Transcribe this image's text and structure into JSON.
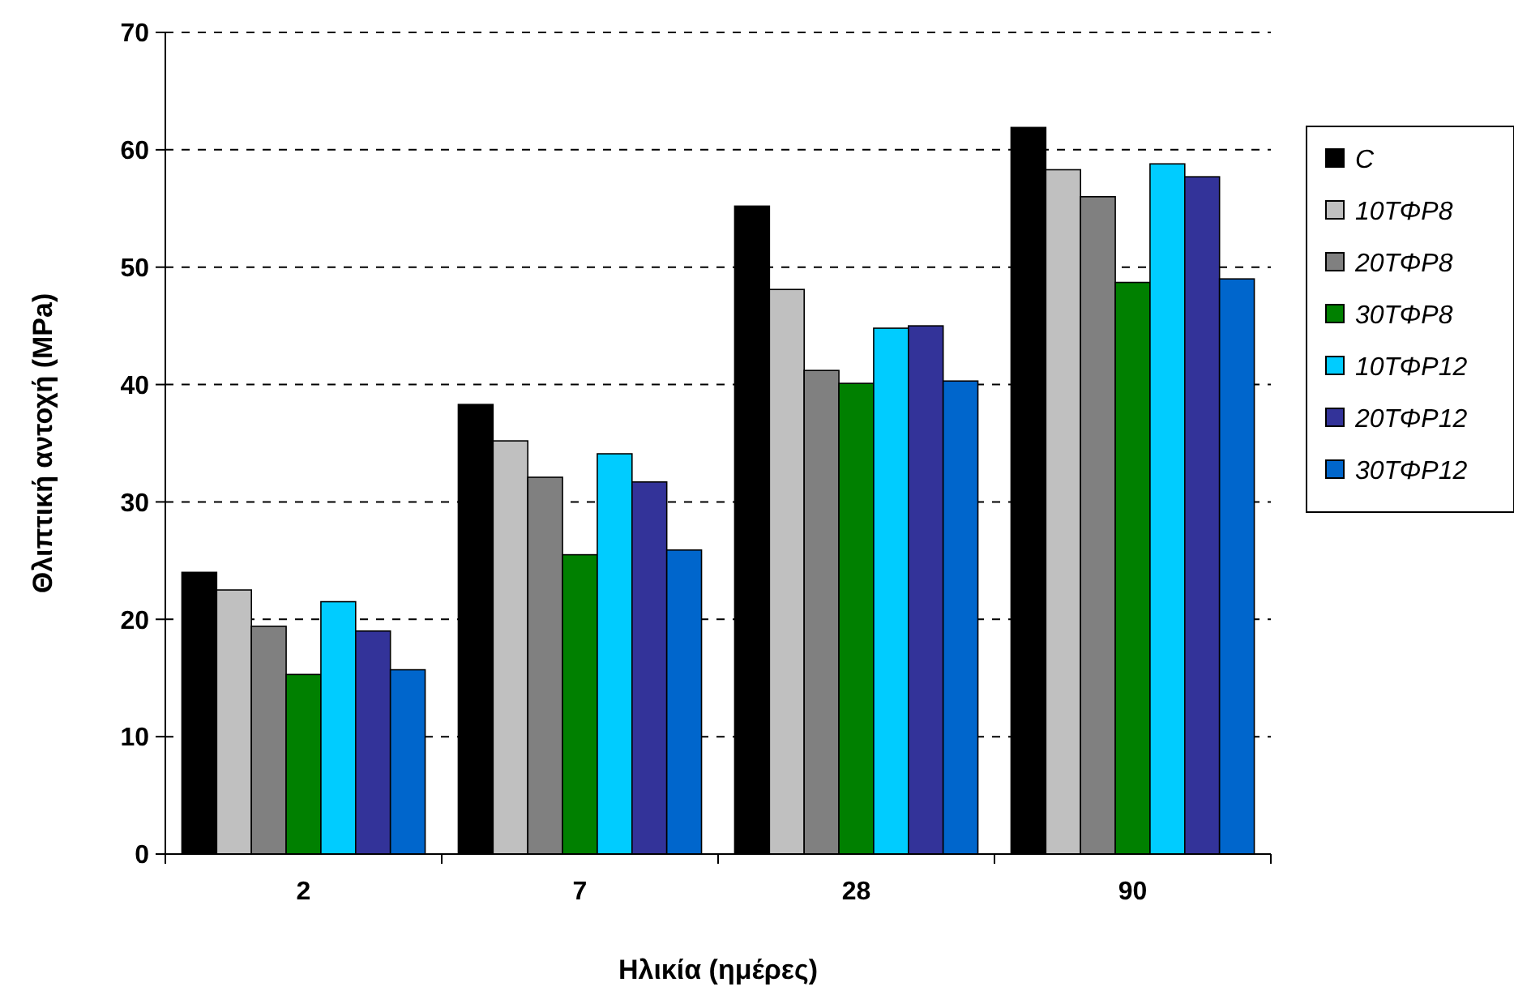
{
  "chart_data": {
    "type": "bar",
    "xlabel": "Ηλικία (ημέρες)",
    "ylabel": "Θλιπτική αντοχή (MPa)",
    "categories": [
      "2",
      "7",
      "28",
      "90"
    ],
    "series": [
      {
        "name": "C",
        "color": "#000000",
        "values": [
          24,
          38.3,
          55.2,
          61.9
        ]
      },
      {
        "name": "10ΤΦP8",
        "color": "#c0c0c0",
        "values": [
          22.5,
          35.2,
          48.1,
          58.3
        ]
      },
      {
        "name": "20ΤΦP8",
        "color": "#808080",
        "values": [
          19.4,
          32.1,
          41.2,
          56
        ]
      },
      {
        "name": "30ΤΦP8",
        "color": "#008000",
        "values": [
          15.3,
          25.5,
          40.1,
          48.7
        ]
      },
      {
        "name": "10ΤΦP12",
        "color": "#00ccff",
        "values": [
          21.5,
          34.1,
          44.8,
          58.8
        ]
      },
      {
        "name": "20ΤΦP12",
        "color": "#333399",
        "values": [
          19,
          31.7,
          45,
          57.7
        ]
      },
      {
        "name": "30ΤΦP12",
        "color": "#0066cc",
        "values": [
          15.7,
          25.9,
          40.3,
          49
        ]
      }
    ],
    "ylim": [
      0,
      70
    ],
    "yticks": [
      0,
      10,
      20,
      30,
      40,
      50,
      60,
      70
    ],
    "grid": "y",
    "legend": "right"
  }
}
